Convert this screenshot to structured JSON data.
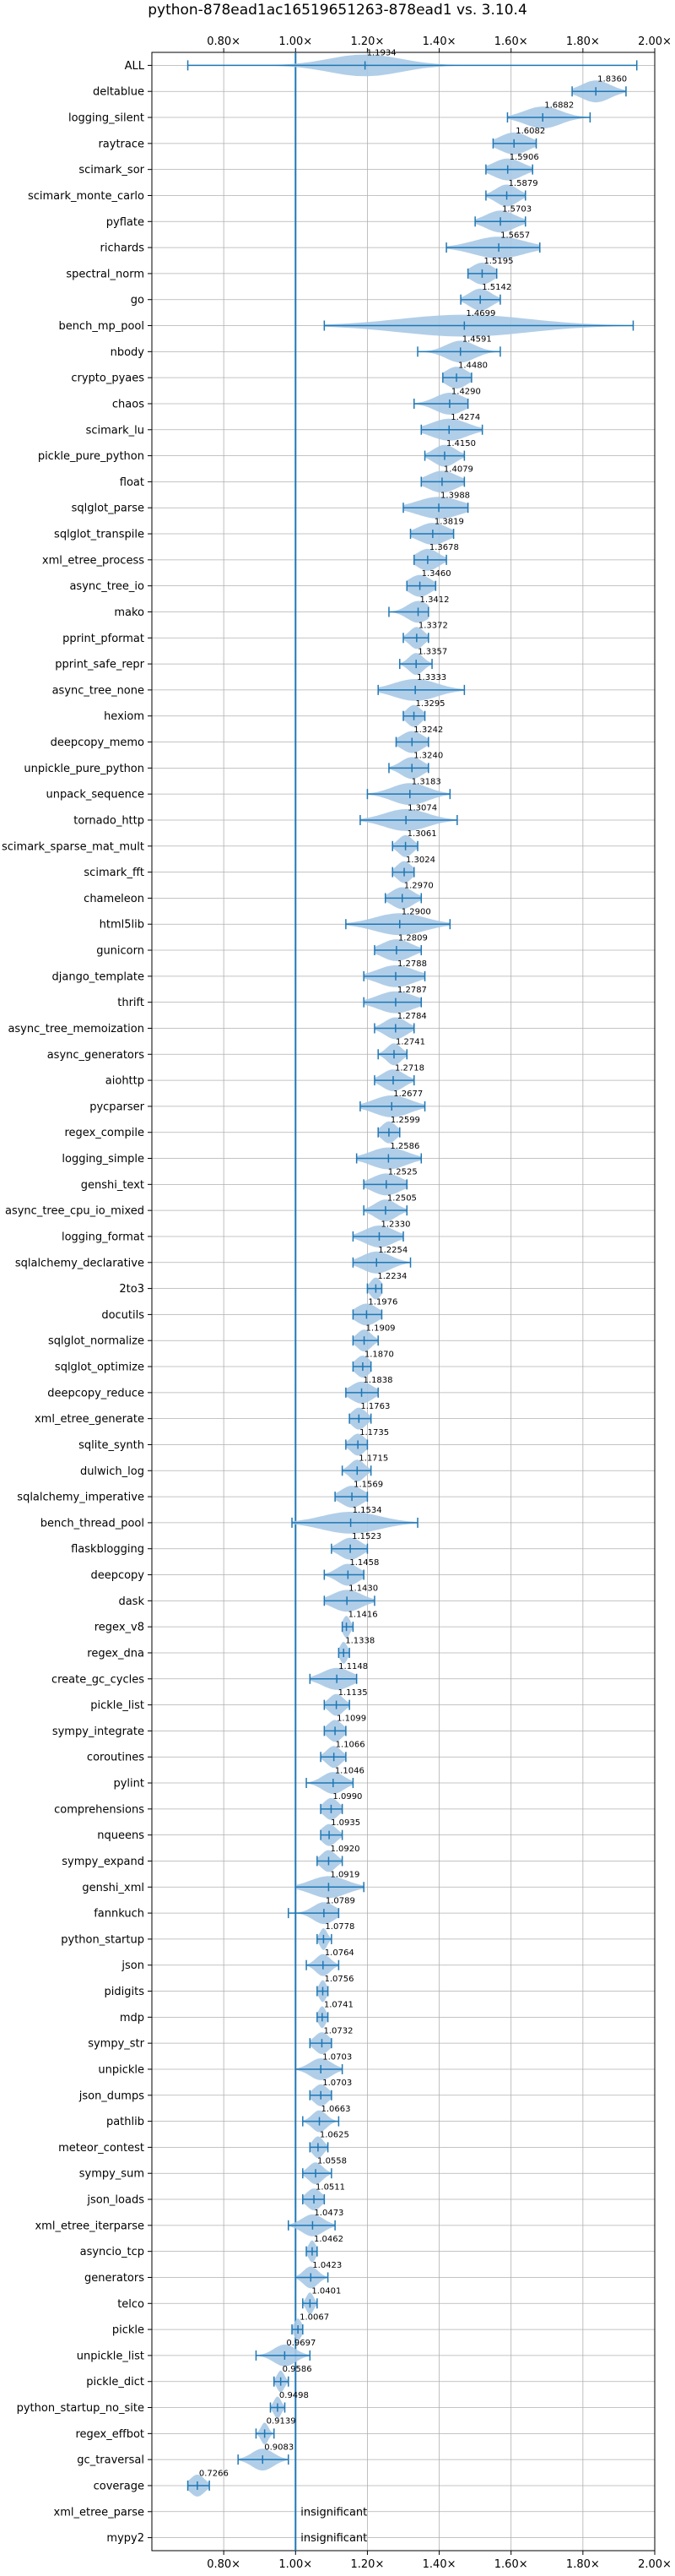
{
  "chart_data": {
    "type": "violin",
    "title": "python-878ead1ac16519651263-878ead1 vs. 3.10.4",
    "xlim": [
      0.6,
      2.0
    ],
    "xticks": [
      {
        "value": 0.8,
        "label": "0.80×"
      },
      {
        "value": 1.0,
        "label": "1.00×"
      },
      {
        "value": 1.2,
        "label": "1.20×"
      },
      {
        "value": 1.4,
        "label": "1.40×"
      },
      {
        "value": 1.6,
        "label": "1.60×"
      },
      {
        "value": 1.8,
        "label": "1.80×"
      },
      {
        "value": 2.0,
        "label": "2.00×"
      }
    ],
    "reference_line": 1.0,
    "grid": true,
    "colors": {
      "violin": "#a9c9e6",
      "line": "#1f77b4",
      "grid": "#b0b0b0"
    },
    "insignificant_text": "insignificant",
    "benchmarks": [
      {
        "name": "ALL",
        "value": 1.1934,
        "label": "1.1934",
        "min": 0.7,
        "max": 1.95,
        "spread": 0.1
      },
      {
        "name": "deltablue",
        "value": 1.836,
        "label": "1.8360",
        "min": 1.77,
        "max": 1.92,
        "spread": 0.04
      },
      {
        "name": "logging_silent",
        "value": 1.6882,
        "label": "1.6882",
        "min": 1.59,
        "max": 1.82,
        "spread": 0.05
      },
      {
        "name": "raytrace",
        "value": 1.6082,
        "label": "1.6082",
        "min": 1.55,
        "max": 1.67,
        "spread": 0.04
      },
      {
        "name": "scimark_sor",
        "value": 1.5906,
        "label": "1.5906",
        "min": 1.53,
        "max": 1.66,
        "spread": 0.04
      },
      {
        "name": "scimark_monte_carlo",
        "value": 1.5879,
        "label": "1.5879",
        "min": 1.53,
        "max": 1.64,
        "spread": 0.03
      },
      {
        "name": "pyflate",
        "value": 1.5703,
        "label": "1.5703",
        "min": 1.5,
        "max": 1.64,
        "spread": 0.04
      },
      {
        "name": "richards",
        "value": 1.5657,
        "label": "1.5657",
        "min": 1.42,
        "max": 1.68,
        "spread": 0.07
      },
      {
        "name": "spectral_norm",
        "value": 1.5195,
        "label": "1.5195",
        "min": 1.48,
        "max": 1.56,
        "spread": 0.03
      },
      {
        "name": "go",
        "value": 1.5142,
        "label": "1.5142",
        "min": 1.46,
        "max": 1.57,
        "spread": 0.03
      },
      {
        "name": "bench_mp_pool",
        "value": 1.4699,
        "label": "1.4699",
        "min": 1.08,
        "max": 1.94,
        "spread": 0.18
      },
      {
        "name": "nbody",
        "value": 1.4591,
        "label": "1.4591",
        "min": 1.34,
        "max": 1.57,
        "spread": 0.04
      },
      {
        "name": "crypto_pyaes",
        "value": 1.448,
        "label": "1.4480",
        "min": 1.41,
        "max": 1.49,
        "spread": 0.03
      },
      {
        "name": "chaos",
        "value": 1.429,
        "label": "1.4290",
        "min": 1.33,
        "max": 1.48,
        "spread": 0.04
      },
      {
        "name": "scimark_lu",
        "value": 1.4274,
        "label": "1.4274",
        "min": 1.35,
        "max": 1.52,
        "spread": 0.05
      },
      {
        "name": "pickle_pure_python",
        "value": 1.415,
        "label": "1.4150",
        "min": 1.36,
        "max": 1.47,
        "spread": 0.03
      },
      {
        "name": "float",
        "value": 1.4079,
        "label": "1.4079",
        "min": 1.35,
        "max": 1.47,
        "spread": 0.04
      },
      {
        "name": "sqlglot_parse",
        "value": 1.3988,
        "label": "1.3988",
        "min": 1.3,
        "max": 1.48,
        "spread": 0.06
      },
      {
        "name": "sqlglot_transpile",
        "value": 1.3819,
        "label": "1.3819",
        "min": 1.32,
        "max": 1.44,
        "spread": 0.04
      },
      {
        "name": "xml_etree_process",
        "value": 1.3678,
        "label": "1.3678",
        "min": 1.33,
        "max": 1.42,
        "spread": 0.03
      },
      {
        "name": "async_tree_io",
        "value": 1.346,
        "label": "1.3460",
        "min": 1.31,
        "max": 1.39,
        "spread": 0.03
      },
      {
        "name": "mako",
        "value": 1.3412,
        "label": "1.3412",
        "min": 1.26,
        "max": 1.37,
        "spread": 0.03
      },
      {
        "name": "pprint_pformat",
        "value": 1.3372,
        "label": "1.3372",
        "min": 1.3,
        "max": 1.37,
        "spread": 0.02
      },
      {
        "name": "pprint_safe_repr",
        "value": 1.3357,
        "label": "1.3357",
        "min": 1.29,
        "max": 1.38,
        "spread": 0.02
      },
      {
        "name": "async_tree_none",
        "value": 1.3333,
        "label": "1.3333",
        "min": 1.23,
        "max": 1.47,
        "spread": 0.06
      },
      {
        "name": "hexiom",
        "value": 1.3295,
        "label": "1.3295",
        "min": 1.3,
        "max": 1.36,
        "spread": 0.02
      },
      {
        "name": "deepcopy_memo",
        "value": 1.3242,
        "label": "1.3242",
        "min": 1.28,
        "max": 1.37,
        "spread": 0.03
      },
      {
        "name": "unpickle_pure_python",
        "value": 1.324,
        "label": "1.3240",
        "min": 1.26,
        "max": 1.37,
        "spread": 0.03
      },
      {
        "name": "unpack_sequence",
        "value": 1.3183,
        "label": "1.3183",
        "min": 1.2,
        "max": 1.43,
        "spread": 0.05
      },
      {
        "name": "tornado_http",
        "value": 1.3074,
        "label": "1.3074",
        "min": 1.18,
        "max": 1.45,
        "spread": 0.06
      },
      {
        "name": "scimark_sparse_mat_mult",
        "value": 1.3061,
        "label": "1.3061",
        "min": 1.27,
        "max": 1.34,
        "spread": 0.02
      },
      {
        "name": "scimark_fft",
        "value": 1.3024,
        "label": "1.3024",
        "min": 1.27,
        "max": 1.33,
        "spread": 0.02
      },
      {
        "name": "chameleon",
        "value": 1.297,
        "label": "1.2970",
        "min": 1.25,
        "max": 1.35,
        "spread": 0.03
      },
      {
        "name": "html5lib",
        "value": 1.29,
        "label": "1.2900",
        "min": 1.14,
        "max": 1.43,
        "spread": 0.07
      },
      {
        "name": "gunicorn",
        "value": 1.2809,
        "label": "1.2809",
        "min": 1.22,
        "max": 1.35,
        "spread": 0.04
      },
      {
        "name": "django_template",
        "value": 1.2788,
        "label": "1.2788",
        "min": 1.19,
        "max": 1.36,
        "spread": 0.05
      },
      {
        "name": "thrift",
        "value": 1.2787,
        "label": "1.2787",
        "min": 1.19,
        "max": 1.35,
        "spread": 0.05
      },
      {
        "name": "async_tree_memoization",
        "value": 1.2784,
        "label": "1.2784",
        "min": 1.22,
        "max": 1.33,
        "spread": 0.03
      },
      {
        "name": "async_generators",
        "value": 1.2741,
        "label": "1.2741",
        "min": 1.23,
        "max": 1.31,
        "spread": 0.02
      },
      {
        "name": "aiohttp",
        "value": 1.2718,
        "label": "1.2718",
        "min": 1.22,
        "max": 1.33,
        "spread": 0.03
      },
      {
        "name": "pycparser",
        "value": 1.2677,
        "label": "1.2677",
        "min": 1.18,
        "max": 1.36,
        "spread": 0.05
      },
      {
        "name": "regex_compile",
        "value": 1.2599,
        "label": "1.2599",
        "min": 1.23,
        "max": 1.29,
        "spread": 0.02
      },
      {
        "name": "logging_simple",
        "value": 1.2586,
        "label": "1.2586",
        "min": 1.17,
        "max": 1.35,
        "spread": 0.05
      },
      {
        "name": "genshi_text",
        "value": 1.2525,
        "label": "1.2525",
        "min": 1.19,
        "max": 1.31,
        "spread": 0.04
      },
      {
        "name": "async_tree_cpu_io_mixed",
        "value": 1.2505,
        "label": "1.2505",
        "min": 1.19,
        "max": 1.31,
        "spread": 0.03
      },
      {
        "name": "logging_format",
        "value": 1.233,
        "label": "1.2330",
        "min": 1.16,
        "max": 1.3,
        "spread": 0.04
      },
      {
        "name": "sqlalchemy_declarative",
        "value": 1.2254,
        "label": "1.2254",
        "min": 1.16,
        "max": 1.32,
        "spread": 0.04
      },
      {
        "name": "2to3",
        "value": 1.2234,
        "label": "1.2234",
        "min": 1.2,
        "max": 1.24,
        "spread": 0.015
      },
      {
        "name": "docutils",
        "value": 1.1976,
        "label": "1.1976",
        "min": 1.16,
        "max": 1.24,
        "spread": 0.03
      },
      {
        "name": "sqlglot_normalize",
        "value": 1.1909,
        "label": "1.1909",
        "min": 1.16,
        "max": 1.23,
        "spread": 0.02
      },
      {
        "name": "sqlglot_optimize",
        "value": 1.187,
        "label": "1.1870",
        "min": 1.16,
        "max": 1.21,
        "spread": 0.02
      },
      {
        "name": "deepcopy_reduce",
        "value": 1.1838,
        "label": "1.1838",
        "min": 1.14,
        "max": 1.23,
        "spread": 0.03
      },
      {
        "name": "xml_etree_generate",
        "value": 1.1763,
        "label": "1.1763",
        "min": 1.15,
        "max": 1.21,
        "spread": 0.02
      },
      {
        "name": "sqlite_synth",
        "value": 1.1735,
        "label": "1.1735",
        "min": 1.14,
        "max": 1.2,
        "spread": 0.02
      },
      {
        "name": "dulwich_log",
        "value": 1.1715,
        "label": "1.1715",
        "min": 1.13,
        "max": 1.21,
        "spread": 0.02
      },
      {
        "name": "sqlalchemy_imperative",
        "value": 1.1569,
        "label": "1.1569",
        "min": 1.11,
        "max": 1.2,
        "spread": 0.03
      },
      {
        "name": "bench_thread_pool",
        "value": 1.1534,
        "label": "1.1534",
        "min": 0.99,
        "max": 1.34,
        "spread": 0.08
      },
      {
        "name": "flaskblogging",
        "value": 1.1523,
        "label": "1.1523",
        "min": 1.1,
        "max": 1.2,
        "spread": 0.03
      },
      {
        "name": "deepcopy",
        "value": 1.1458,
        "label": "1.1458",
        "min": 1.08,
        "max": 1.19,
        "spread": 0.03
      },
      {
        "name": "dask",
        "value": 1.143,
        "label": "1.1430",
        "min": 1.08,
        "max": 1.22,
        "spread": 0.04
      },
      {
        "name": "regex_v8",
        "value": 1.1416,
        "label": "1.1416",
        "min": 1.13,
        "max": 1.16,
        "spread": 0.01
      },
      {
        "name": "regex_dna",
        "value": 1.1338,
        "label": "1.1338",
        "min": 1.12,
        "max": 1.15,
        "spread": 0.01
      },
      {
        "name": "create_gc_cycles",
        "value": 1.1148,
        "label": "1.1148",
        "min": 1.04,
        "max": 1.17,
        "spread": 0.04
      },
      {
        "name": "pickle_list",
        "value": 1.1135,
        "label": "1.1135",
        "min": 1.08,
        "max": 1.15,
        "spread": 0.02
      },
      {
        "name": "sympy_integrate",
        "value": 1.1099,
        "label": "1.1099",
        "min": 1.08,
        "max": 1.14,
        "spread": 0.02
      },
      {
        "name": "coroutines",
        "value": 1.1066,
        "label": "1.1066",
        "min": 1.07,
        "max": 1.14,
        "spread": 0.02
      },
      {
        "name": "pylint",
        "value": 1.1046,
        "label": "1.1046",
        "min": 1.03,
        "max": 1.16,
        "spread": 0.03
      },
      {
        "name": "comprehensions",
        "value": 1.099,
        "label": "1.0990",
        "min": 1.07,
        "max": 1.13,
        "spread": 0.02
      },
      {
        "name": "nqueens",
        "value": 1.0935,
        "label": "1.0935",
        "min": 1.07,
        "max": 1.13,
        "spread": 0.02
      },
      {
        "name": "sympy_expand",
        "value": 1.092,
        "label": "1.0920",
        "min": 1.06,
        "max": 1.13,
        "spread": 0.02
      },
      {
        "name": "genshi_xml",
        "value": 1.0919,
        "label": "1.0919",
        "min": 1.0,
        "max": 1.19,
        "spread": 0.05
      },
      {
        "name": "fannkuch",
        "value": 1.0789,
        "label": "1.0789",
        "min": 0.98,
        "max": 1.12,
        "spread": 0.03
      },
      {
        "name": "python_startup",
        "value": 1.0778,
        "label": "1.0778",
        "min": 1.06,
        "max": 1.1,
        "spread": 0.01
      },
      {
        "name": "json",
        "value": 1.0764,
        "label": "1.0764",
        "min": 1.03,
        "max": 1.12,
        "spread": 0.02
      },
      {
        "name": "pidigits",
        "value": 1.0756,
        "label": "1.0756",
        "min": 1.06,
        "max": 1.09,
        "spread": 0.01
      },
      {
        "name": "mdp",
        "value": 1.0741,
        "label": "1.0741",
        "min": 1.06,
        "max": 1.09,
        "spread": 0.01
      },
      {
        "name": "sympy_str",
        "value": 1.0732,
        "label": "1.0732",
        "min": 1.04,
        "max": 1.1,
        "spread": 0.02
      },
      {
        "name": "unpickle",
        "value": 1.0703,
        "label": "1.0703",
        "min": 1.0,
        "max": 1.13,
        "spread": 0.03
      },
      {
        "name": "json_dumps",
        "value": 1.0703,
        "label": "1.0703",
        "min": 1.04,
        "max": 1.1,
        "spread": 0.02
      },
      {
        "name": "pathlib",
        "value": 1.0663,
        "label": "1.0663",
        "min": 1.02,
        "max": 1.12,
        "spread": 0.02
      },
      {
        "name": "meteor_contest",
        "value": 1.0625,
        "label": "1.0625",
        "min": 1.04,
        "max": 1.09,
        "spread": 0.015
      },
      {
        "name": "sympy_sum",
        "value": 1.0558,
        "label": "1.0558",
        "min": 1.02,
        "max": 1.1,
        "spread": 0.02
      },
      {
        "name": "json_loads",
        "value": 1.0511,
        "label": "1.0511",
        "min": 1.02,
        "max": 1.08,
        "spread": 0.02
      },
      {
        "name": "xml_etree_iterparse",
        "value": 1.0473,
        "label": "1.0473",
        "min": 0.98,
        "max": 1.11,
        "spread": 0.03
      },
      {
        "name": "asyncio_tcp",
        "value": 1.0462,
        "label": "1.0462",
        "min": 1.03,
        "max": 1.06,
        "spread": 0.01
      },
      {
        "name": "generators",
        "value": 1.0423,
        "label": "1.0423",
        "min": 1.0,
        "max": 1.09,
        "spread": 0.02
      },
      {
        "name": "telco",
        "value": 1.0401,
        "label": "1.0401",
        "min": 1.02,
        "max": 1.06,
        "spread": 0.01
      },
      {
        "name": "pickle",
        "value": 1.0067,
        "label": "1.0067",
        "min": 0.99,
        "max": 1.02,
        "spread": 0.01
      },
      {
        "name": "unpickle_list",
        "value": 0.9697,
        "label": "0.9697",
        "min": 0.89,
        "max": 1.04,
        "spread": 0.03
      },
      {
        "name": "pickle_dict",
        "value": 0.9586,
        "label": "0.9586",
        "min": 0.94,
        "max": 0.98,
        "spread": 0.01
      },
      {
        "name": "python_startup_no_site",
        "value": 0.9498,
        "label": "0.9498",
        "min": 0.93,
        "max": 0.97,
        "spread": 0.01
      },
      {
        "name": "regex_effbot",
        "value": 0.9139,
        "label": "0.9139",
        "min": 0.89,
        "max": 0.94,
        "spread": 0.01
      },
      {
        "name": "gc_traversal",
        "value": 0.9083,
        "label": "0.9083",
        "min": 0.84,
        "max": 0.98,
        "spread": 0.03
      },
      {
        "name": "coverage",
        "value": 0.7266,
        "label": "0.7266",
        "min": 0.7,
        "max": 0.76,
        "spread": 0.02
      },
      {
        "name": "xml_etree_parse",
        "value": null,
        "label": null,
        "insignificant": true
      },
      {
        "name": "mypy2",
        "value": null,
        "label": null,
        "insignificant": true
      }
    ]
  }
}
